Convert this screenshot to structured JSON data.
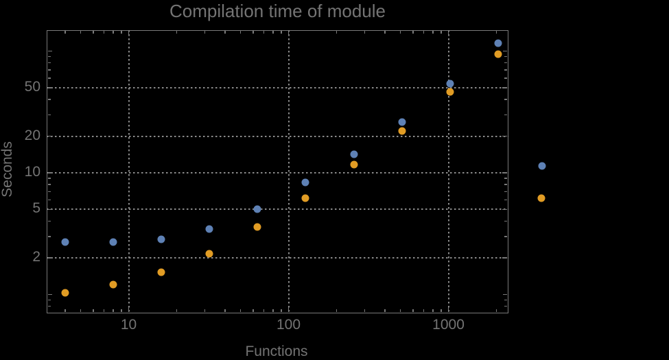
{
  "chart_data": {
    "type": "scatter",
    "title": "Compilation time of module",
    "xlabel": "Functions",
    "ylabel": "Seconds",
    "x_scale": "log",
    "y_scale": "log",
    "xlim": [
      3.07,
      2362
    ],
    "ylim": [
      0.704,
      149.5
    ],
    "grid": "dotted gridlines at labeled major ticks only",
    "x_ticks": {
      "values": [
        10,
        100,
        1000
      ],
      "labels": [
        "10",
        "100",
        "1000"
      ]
    },
    "y_ticks": {
      "values": [
        2,
        5,
        10,
        20,
        50
      ],
      "labels": [
        "2",
        "5",
        "10",
        "20",
        "50"
      ]
    },
    "x": [
      4,
      8,
      16,
      32,
      64,
      128,
      256,
      512,
      1024,
      2048
    ],
    "series": [
      {
        "name": "blue-series",
        "color": "#5E81B5",
        "values": [
          2.7,
          2.7,
          2.85,
          3.45,
          5.0,
          8.3,
          14.2,
          26,
          54,
          116
        ]
      },
      {
        "name": "orange-series",
        "color": "#E19C24",
        "values": [
          1.03,
          1.2,
          1.53,
          2.17,
          3.6,
          6.2,
          11.7,
          22,
          46,
          94
        ]
      }
    ],
    "legend": {
      "position": "outside-right",
      "entries": [
        {
          "name": "blue-series",
          "marker_color": "#5E81B5",
          "label": ""
        },
        {
          "name": "orange-series",
          "marker_color": "#E19C24",
          "label": ""
        }
      ]
    }
  },
  "colors": {
    "background": "#000000",
    "frame": "#7a7a7a",
    "grid": "#8a8a8a",
    "text": "#747474",
    "series_blue": "#5E81B5",
    "series_orange": "#E19C24"
  }
}
